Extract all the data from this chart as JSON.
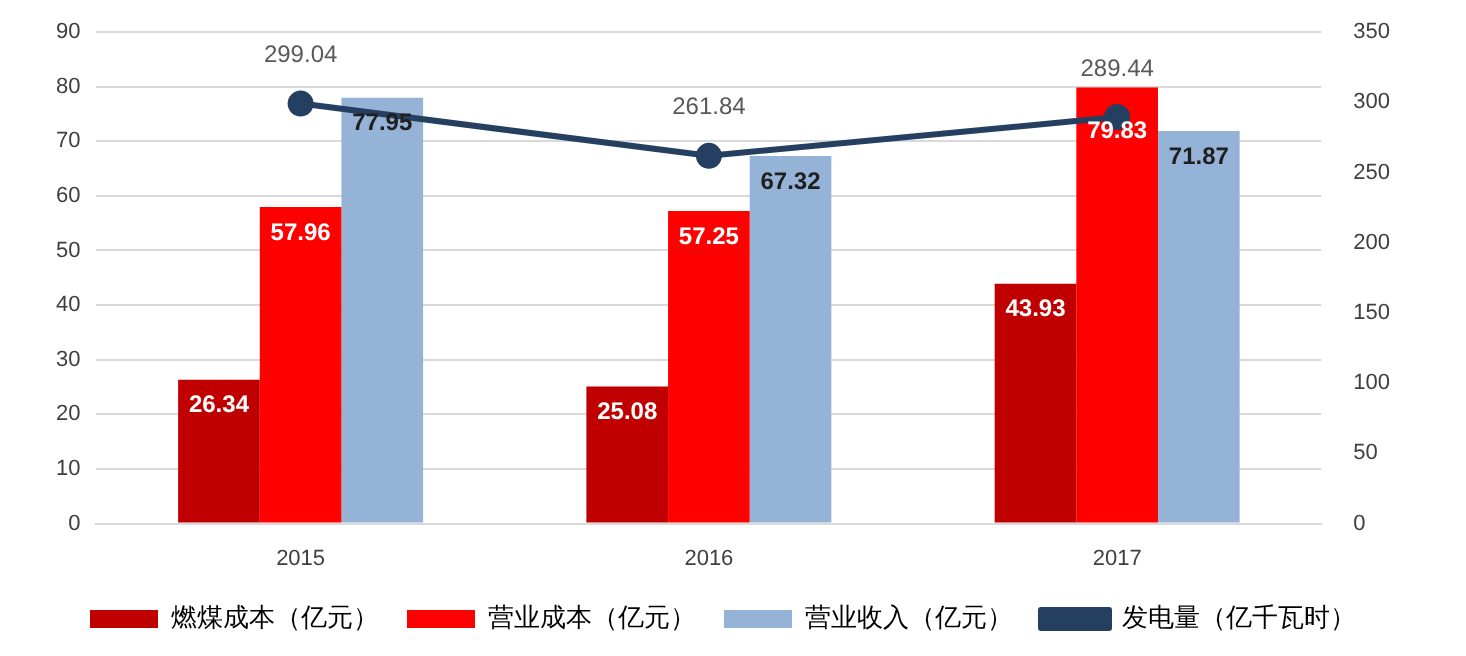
{
  "chart_data": {
    "type": "bar",
    "categories": [
      "2015",
      "2016",
      "2017"
    ],
    "series": [
      {
        "name": "燃煤成本（亿元）",
        "color": "#c00000",
        "values": [
          26.34,
          25.08,
          43.93
        ]
      },
      {
        "name": "营业成本（亿元）",
        "color": "#ff0000",
        "values": [
          57.96,
          57.25,
          79.83
        ]
      },
      {
        "name": "营业收入（亿元）",
        "color": "#95b3d7",
        "values": [
          77.95,
          67.32,
          71.87
        ]
      },
      {
        "name": "发电量（亿千瓦时）",
        "color": "#243f60",
        "type": "line",
        "axis": "y2",
        "values": [
          299.04,
          261.84,
          289.44
        ]
      }
    ],
    "ylim": [
      0,
      90
    ],
    "yticks": [
      0,
      10,
      20,
      30,
      40,
      50,
      60,
      70,
      80,
      90
    ],
    "y2lim": [
      0,
      350
    ],
    "y2ticks": [
      0,
      50,
      100,
      150,
      200,
      250,
      300,
      350
    ],
    "grid": "y",
    "legend": "bottom",
    "marker": "circle",
    "line_style": "solid",
    "data_labels": true
  }
}
